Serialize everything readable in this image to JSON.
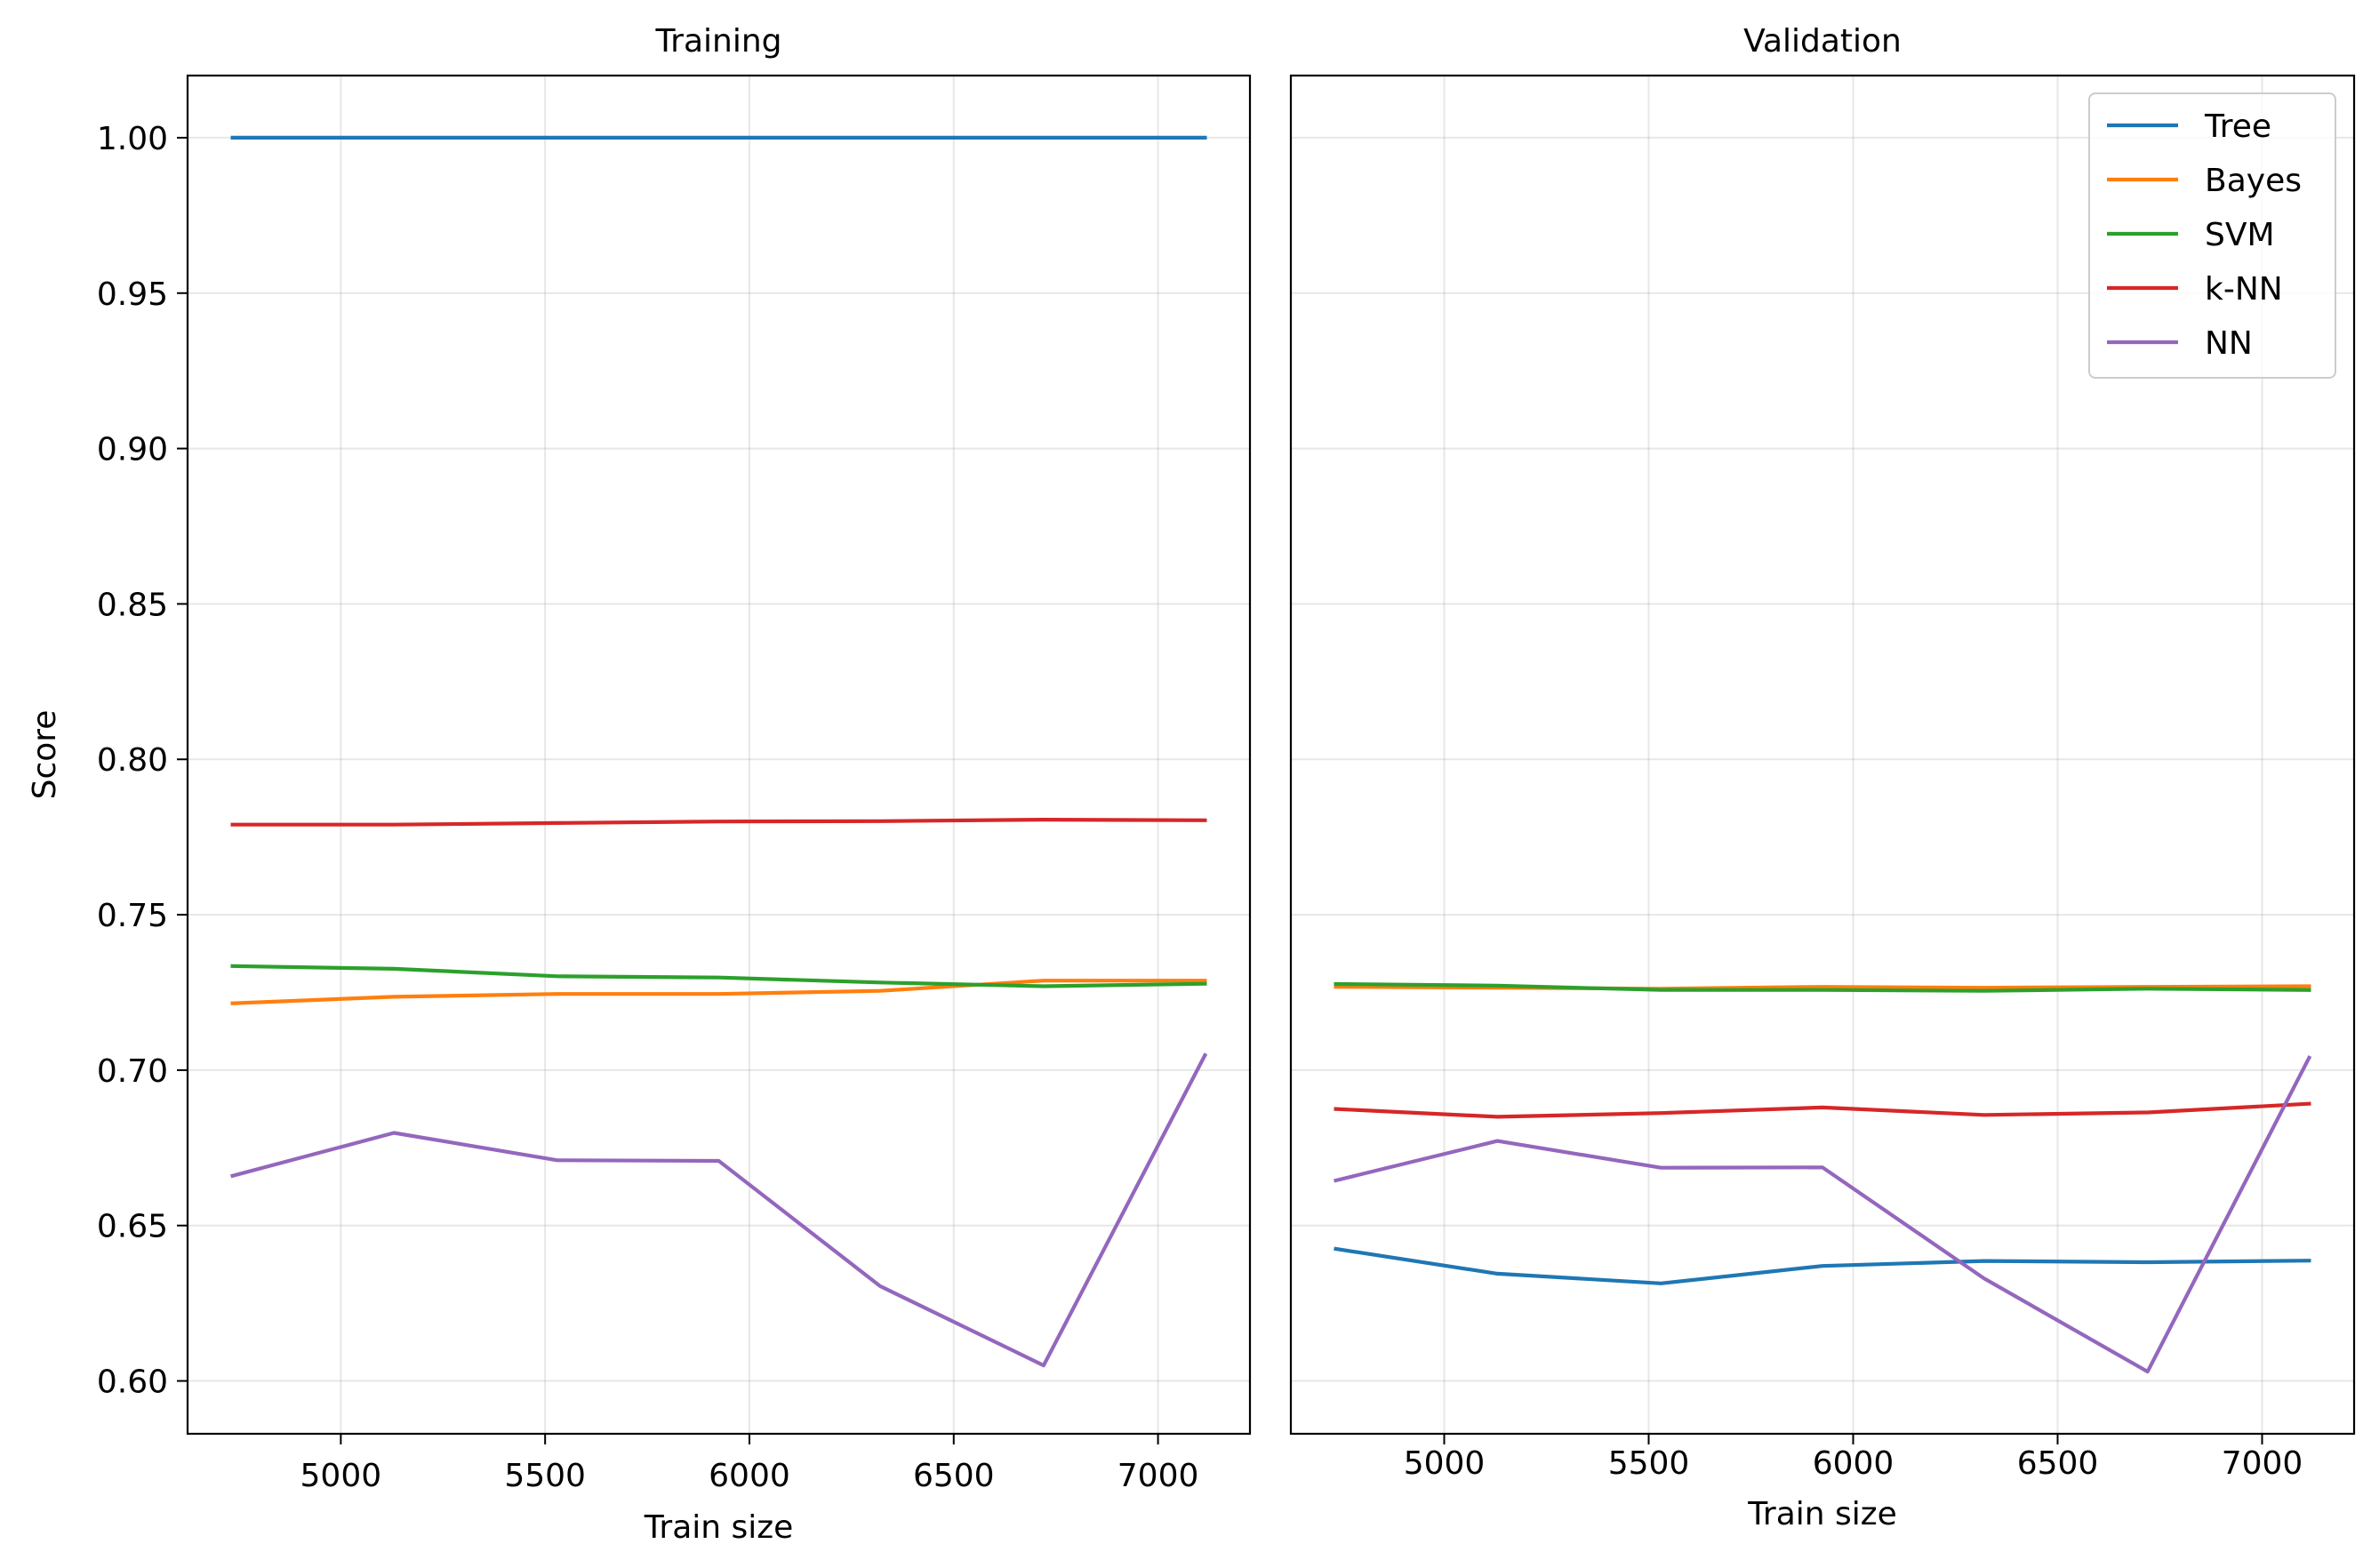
{
  "chart_data": [
    {
      "type": "line",
      "title": "Training",
      "xlabel": "Train size",
      "ylabel": "Score",
      "xlim": [
        4625,
        7225
      ],
      "ylim": [
        0.583,
        1.02
      ],
      "xticks": [
        5000,
        5500,
        6000,
        6500,
        7000
      ],
      "yticks": [
        0.6,
        0.65,
        0.7,
        0.75,
        0.8,
        0.85,
        0.9,
        0.95,
        1.0
      ],
      "grid": true,
      "x": [
        4735,
        5130,
        5530,
        5925,
        6320,
        6720,
        7115
      ],
      "series": [
        {
          "name": "Tree",
          "color": "#1f77b4",
          "values": [
            1.0,
            1.0,
            1.0,
            1.0,
            1.0,
            1.0,
            1.0
          ]
        },
        {
          "name": "Bayes",
          "color": "#ff7f0e",
          "values": [
            0.7215,
            0.7236,
            0.7245,
            0.7245,
            0.7255,
            0.7288,
            0.7288
          ]
        },
        {
          "name": "SVM",
          "color": "#2ca02c",
          "values": [
            0.7335,
            0.7326,
            0.7302,
            0.7298,
            0.7282,
            0.727,
            0.7278
          ]
        },
        {
          "name": "k-NN",
          "color": "#d62728",
          "values": [
            0.779,
            0.779,
            0.7795,
            0.78,
            0.7801,
            0.7806,
            0.7804
          ]
        },
        {
          "name": "NN",
          "color": "#9467bd",
          "values": [
            0.666,
            0.6798,
            0.671,
            0.6708,
            0.6305,
            0.605,
            0.7048
          ]
        }
      ]
    },
    {
      "type": "line",
      "title": "Validation",
      "xlabel": "Train size",
      "ylabel": "",
      "xlim": [
        4625,
        7225
      ],
      "ylim": [
        0.583,
        1.02
      ],
      "xticks": [
        5000,
        5500,
        6000,
        6500,
        7000
      ],
      "grid": true,
      "legend": "top-right",
      "x": [
        4735,
        5130,
        5530,
        5925,
        6320,
        6720,
        7115
      ],
      "series": [
        {
          "name": "Tree",
          "color": "#1f77b4",
          "values": [
            0.6425,
            0.6345,
            0.6314,
            0.637,
            0.6386,
            0.6382,
            0.6387
          ]
        },
        {
          "name": "Bayes",
          "color": "#ff7f0e",
          "values": [
            0.7268,
            0.7265,
            0.7262,
            0.7268,
            0.7265,
            0.7268,
            0.727
          ]
        },
        {
          "name": "SVM",
          "color": "#2ca02c",
          "values": [
            0.7277,
            0.7272,
            0.7258,
            0.7258,
            0.7255,
            0.7262,
            0.7258
          ]
        },
        {
          "name": "k-NN",
          "color": "#d62728",
          "values": [
            0.6875,
            0.685,
            0.6862,
            0.688,
            0.6856,
            0.6864,
            0.6892
          ]
        },
        {
          "name": "NN",
          "color": "#9467bd",
          "values": [
            0.6645,
            0.6772,
            0.6686,
            0.6687,
            0.633,
            0.603,
            0.704
          ]
        }
      ]
    }
  ]
}
